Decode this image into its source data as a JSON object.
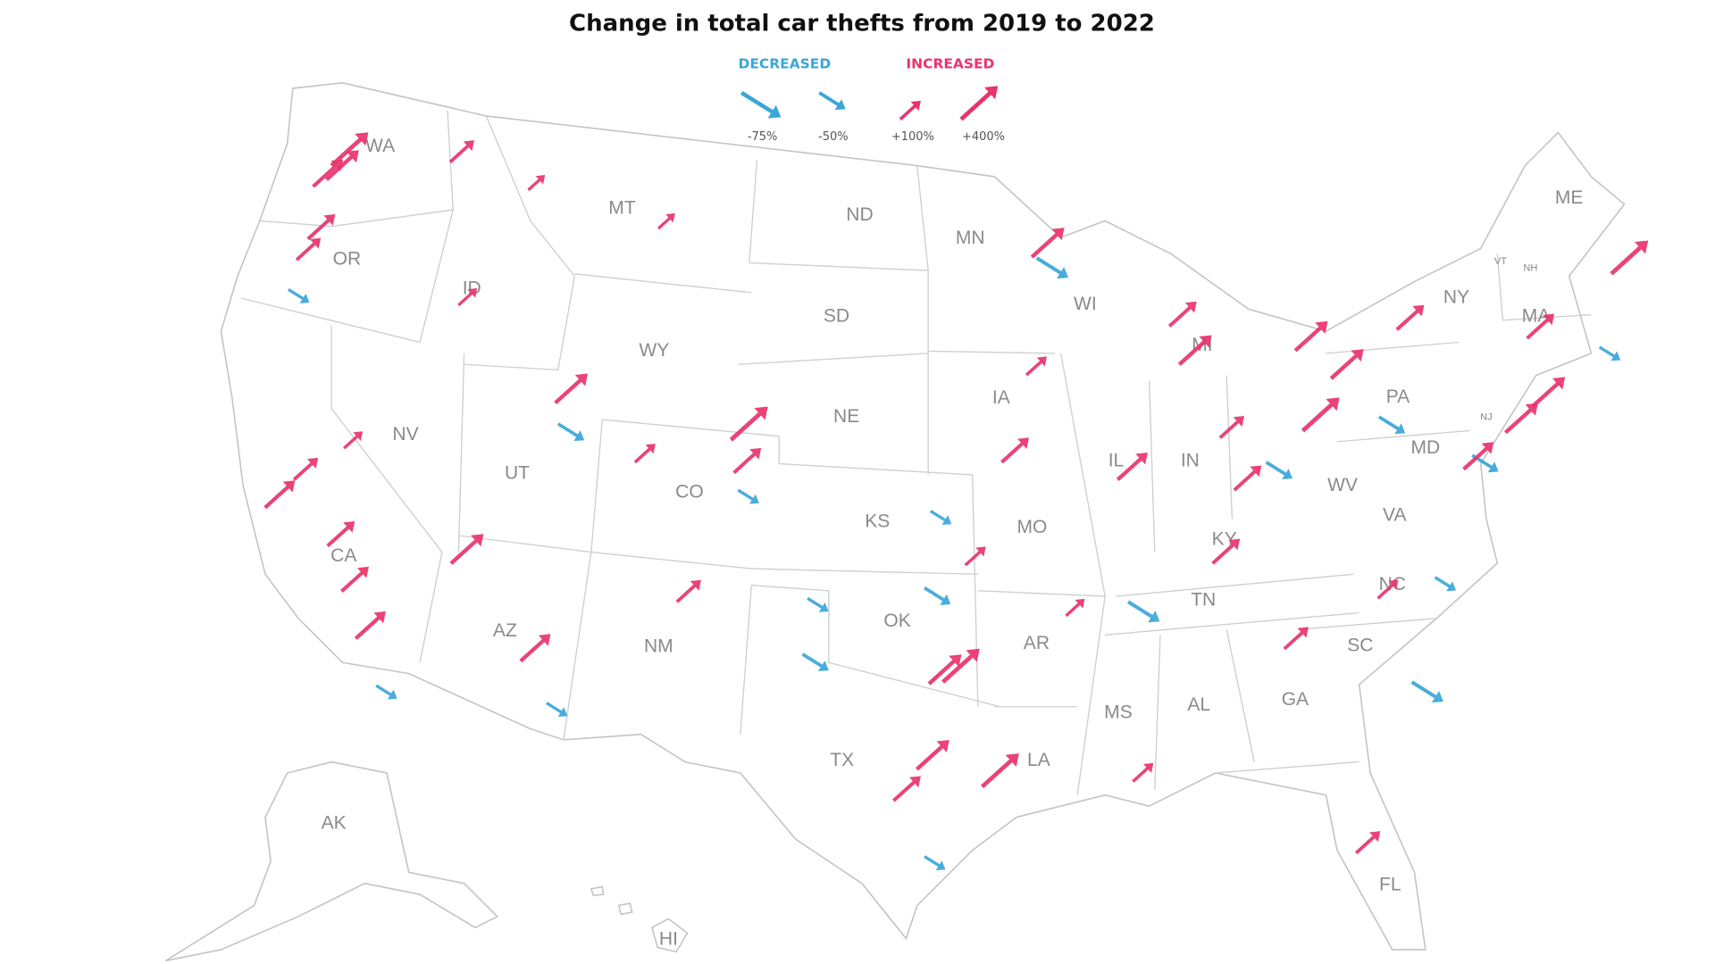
{
  "chart_data": {
    "type": "map",
    "title": "Change in total car thefts from 2019 to 2022",
    "decreased_label": "DECREASED",
    "increased_label": "INCREASED",
    "decreased_color": "#3aa6d8",
    "increased_color": "#e8336b",
    "legend_items": [
      {
        "value": -75,
        "label": "-75%"
      },
      {
        "value": -50,
        "label": "-50%"
      },
      {
        "value": 100,
        "label": "+100%"
      },
      {
        "value": 400,
        "label": "+400%"
      }
    ],
    "states": [
      "WA",
      "OR",
      "ID",
      "MT",
      "ND",
      "MN",
      "WI",
      "MI",
      "NY",
      "ME",
      "VT",
      "NH",
      "MA",
      "SD",
      "WY",
      "NE",
      "IA",
      "IL",
      "IN",
      "PA",
      "NJ",
      "MD",
      "WV",
      "VA",
      "NV",
      "UT",
      "CO",
      "KS",
      "MO",
      "KY",
      "CA",
      "TN",
      "NC",
      "AZ",
      "NM",
      "OK",
      "AR",
      "SC",
      "MS",
      "AL",
      "GA",
      "TX",
      "LA",
      "FL",
      "AK",
      "HI"
    ],
    "arrows": [
      {
        "lon": -122.3,
        "lat": 47.6,
        "change": 400
      },
      {
        "lon": -122.4,
        "lat": 47.2,
        "change": 300
      },
      {
        "lon": -122.9,
        "lat": 47.0,
        "change": 250
      },
      {
        "lon": -117.4,
        "lat": 47.7,
        "change": 150
      },
      {
        "lon": -122.7,
        "lat": 45.5,
        "change": 200
      },
      {
        "lon": -123.0,
        "lat": 44.9,
        "change": 150
      },
      {
        "lon": -123.1,
        "lat": 44.05,
        "change": -40
      },
      {
        "lon": -116.2,
        "lat": 43.6,
        "change": 80
      },
      {
        "lon": -108.5,
        "lat": 45.8,
        "change": 60
      },
      {
        "lon": -114.0,
        "lat": 46.9,
        "change": 60
      },
      {
        "lon": -111.9,
        "lat": 40.8,
        "change": 300
      },
      {
        "lon": -111.7,
        "lat": 40.2,
        "change": -50
      },
      {
        "lon": -104.99,
        "lat": 39.74,
        "change": 400
      },
      {
        "lon": -104.8,
        "lat": 38.8,
        "change": 200
      },
      {
        "lon": -104.6,
        "lat": 38.3,
        "change": -40
      },
      {
        "lon": -108.6,
        "lat": 39.1,
        "change": 100
      },
      {
        "lon": -115.1,
        "lat": 36.2,
        "change": 300
      },
      {
        "lon": -119.8,
        "lat": 39.5,
        "change": 80
      },
      {
        "lon": -122.4,
        "lat": 37.8,
        "change": 250
      },
      {
        "lon": -121.5,
        "lat": 38.6,
        "change": 150
      },
      {
        "lon": -118.2,
        "lat": 34.05,
        "change": 250
      },
      {
        "lon": -117.2,
        "lat": 32.7,
        "change": -40
      },
      {
        "lon": -119.8,
        "lat": 36.7,
        "change": 200
      },
      {
        "lon": -119.0,
        "lat": 35.4,
        "change": 200
      },
      {
        "lon": -112.1,
        "lat": 33.4,
        "change": 250
      },
      {
        "lon": -111.0,
        "lat": 32.2,
        "change": -40
      },
      {
        "lon": -106.6,
        "lat": 35.1,
        "change": 150
      },
      {
        "lon": -96.8,
        "lat": 32.8,
        "change": 400
      },
      {
        "lon": -97.3,
        "lat": 32.75,
        "change": 300
      },
      {
        "lon": -95.4,
        "lat": 29.8,
        "change": 400
      },
      {
        "lon": -97.7,
        "lat": 30.3,
        "change": 300
      },
      {
        "lon": -98.5,
        "lat": 29.4,
        "change": 200
      },
      {
        "lon": -97.4,
        "lat": 27.8,
        "change": -40
      },
      {
        "lon": -101.9,
        "lat": 33.6,
        "change": -50
      },
      {
        "lon": -101.8,
        "lat": 35.2,
        "change": -40
      },
      {
        "lon": -97.5,
        "lat": 35.5,
        "change": -50
      },
      {
        "lon": -95.99,
        "lat": 36.15,
        "change": 100
      },
      {
        "lon": -97.3,
        "lat": 37.7,
        "change": -40
      },
      {
        "lon": -94.6,
        "lat": 39.1,
        "change": 200
      },
      {
        "lon": -90.2,
        "lat": 38.6,
        "change": 250
      },
      {
        "lon": -90.0,
        "lat": 35.1,
        "change": -60
      },
      {
        "lon": -92.3,
        "lat": 34.7,
        "change": 80
      },
      {
        "lon": -90.1,
        "lat": 29.95,
        "change": 100
      },
      {
        "lon": -93.3,
        "lat": 44.98,
        "change": 300
      },
      {
        "lon": -93.1,
        "lat": 44.95,
        "change": -60
      },
      {
        "lon": -93.6,
        "lat": 41.6,
        "change": 100
      },
      {
        "lon": -87.9,
        "lat": 43.0,
        "change": 200
      },
      {
        "lon": -87.6,
        "lat": 41.9,
        "change": 300
      },
      {
        "lon": -86.2,
        "lat": 39.8,
        "change": 150
      },
      {
        "lon": -83.0,
        "lat": 42.3,
        "change": 300
      },
      {
        "lon": -83.0,
        "lat": 40.0,
        "change": 400
      },
      {
        "lon": -81.7,
        "lat": 41.5,
        "change": 300
      },
      {
        "lon": -84.5,
        "lat": 39.1,
        "change": -50
      },
      {
        "lon": -80.0,
        "lat": 40.4,
        "change": -50
      },
      {
        "lon": -75.2,
        "lat": 39.95,
        "change": 300
      },
      {
        "lon": -74.0,
        "lat": 40.7,
        "change": 300
      },
      {
        "lon": -71.0,
        "lat": 42.4,
        "change": -40
      },
      {
        "lon": -76.6,
        "lat": 39.3,
        "change": -50
      },
      {
        "lon": -77.0,
        "lat": 38.9,
        "change": 250
      },
      {
        "lon": -86.8,
        "lat": 36.2,
        "change": 200
      },
      {
        "lon": -85.8,
        "lat": 38.3,
        "change": 200
      },
      {
        "lon": -84.4,
        "lat": 33.75,
        "change": 150
      },
      {
        "lon": -80.8,
        "lat": 35.2,
        "change": 100
      },
      {
        "lon": -78.6,
        "lat": 35.8,
        "change": -40
      },
      {
        "lon": -79.9,
        "lat": 32.8,
        "change": -60
      },
      {
        "lon": -82.5,
        "lat": 27.9,
        "change": 150
      },
      {
        "lon": -78.9,
        "lat": 42.9,
        "change": 200
      },
      {
        "lon": -70.0,
        "lat": 44.5,
        "change": 400
      },
      {
        "lon": -73.8,
        "lat": 42.65,
        "change": 200
      }
    ]
  }
}
